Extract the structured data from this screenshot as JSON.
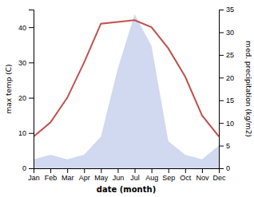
{
  "chart_data": {
    "type": "line",
    "categories": [
      "Jan",
      "Feb",
      "Mar",
      "Apr",
      "May",
      "Jun",
      "Jul",
      "Aug",
      "Sep",
      "Oct",
      "Nov",
      "Dec"
    ],
    "series": [
      {
        "type": "line",
        "color": "#c0504d",
        "values": [
          9,
          13,
          20,
          30,
          41,
          41.5,
          42,
          40,
          34,
          26,
          15,
          9
        ]
      },
      {
        "type": "area",
        "color": "#b8c4e8",
        "axis": "y2",
        "values": [
          2,
          3,
          2,
          3,
          7,
          22,
          34,
          27,
          6,
          3,
          2,
          5
        ]
      }
    ],
    "xlabel": "date (month)",
    "ylabel": "max temp (C)",
    "y2label": "med. precipitation (kg/m2)",
    "ylim": [
      0,
      45
    ],
    "yticks": [
      0,
      10,
      20,
      30,
      40
    ],
    "y2lim": [
      0,
      35
    ],
    "y2ticks": [
      0,
      5,
      10,
      15,
      20,
      25,
      30,
      35
    ],
    "grid": false
  }
}
